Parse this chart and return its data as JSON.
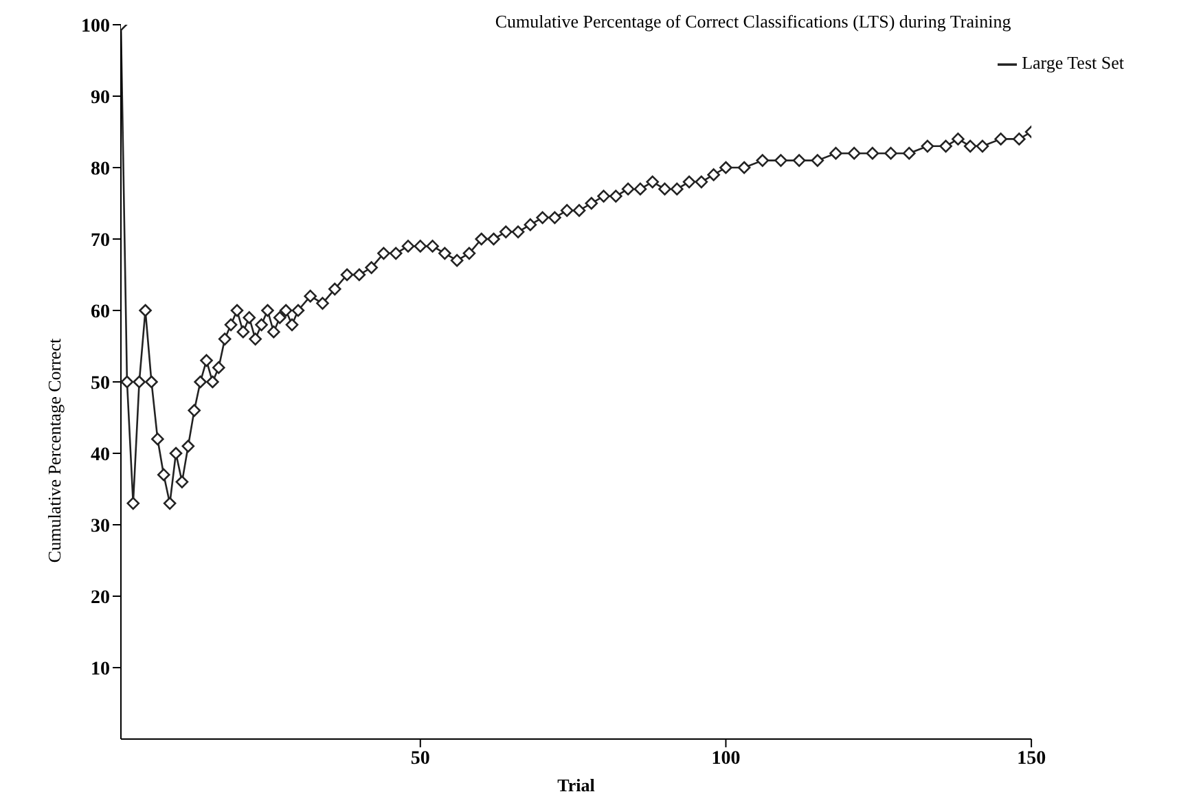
{
  "chart_data": {
    "type": "line",
    "title": "Cumulative Percentage of Correct Classifications (LTS) during Training",
    "xlabel": "Trial",
    "ylabel": "Cumulative Percentage Correct",
    "x": [
      1,
      2,
      3,
      4,
      5,
      6,
      7,
      8,
      9,
      10,
      11,
      12,
      13,
      14,
      15,
      16,
      17,
      18,
      19,
      20,
      21,
      22,
      23,
      24,
      25,
      26,
      27,
      28,
      29,
      30,
      32,
      34,
      36,
      38,
      40,
      42,
      44,
      46,
      48,
      50,
      52,
      54,
      56,
      58,
      60,
      62,
      64,
      66,
      68,
      70,
      72,
      74,
      76,
      78,
      80,
      82,
      84,
      86,
      88,
      90,
      92,
      94,
      96,
      98,
      100,
      103,
      106,
      109,
      112,
      115,
      118,
      121,
      124,
      127,
      130,
      133,
      136,
      138,
      140,
      142,
      145,
      148,
      150
    ],
    "series": [
      {
        "name": "Large Test Set",
        "color": "#222222",
        "values": [
          100,
          50,
          33,
          50,
          60,
          50,
          42,
          37,
          33,
          40,
          36,
          41,
          46,
          50,
          53,
          50,
          52,
          56,
          58,
          60,
          57,
          59,
          56,
          58,
          60,
          57,
          59,
          60,
          58,
          60,
          62,
          61,
          63,
          65,
          65,
          66,
          68,
          68,
          69,
          69,
          69,
          68,
          67,
          68,
          70,
          70,
          71,
          71,
          72,
          73,
          73,
          74,
          74,
          75,
          76,
          76,
          77,
          77,
          78,
          77,
          77,
          78,
          78,
          79,
          80,
          80,
          81,
          81,
          81,
          81,
          82,
          82,
          82,
          82,
          82,
          83,
          83,
          84,
          83,
          83,
          84,
          84,
          85
        ]
      }
    ],
    "xlim": [
      1,
      150
    ],
    "ylim": [
      0,
      100
    ],
    "xticks": [
      50,
      100,
      150
    ],
    "yticks": [
      10,
      20,
      30,
      40,
      50,
      60,
      70,
      80,
      90,
      100
    ],
    "legend": "top right",
    "marker": "diamond",
    "line_style": "solid",
    "grid": false
  }
}
